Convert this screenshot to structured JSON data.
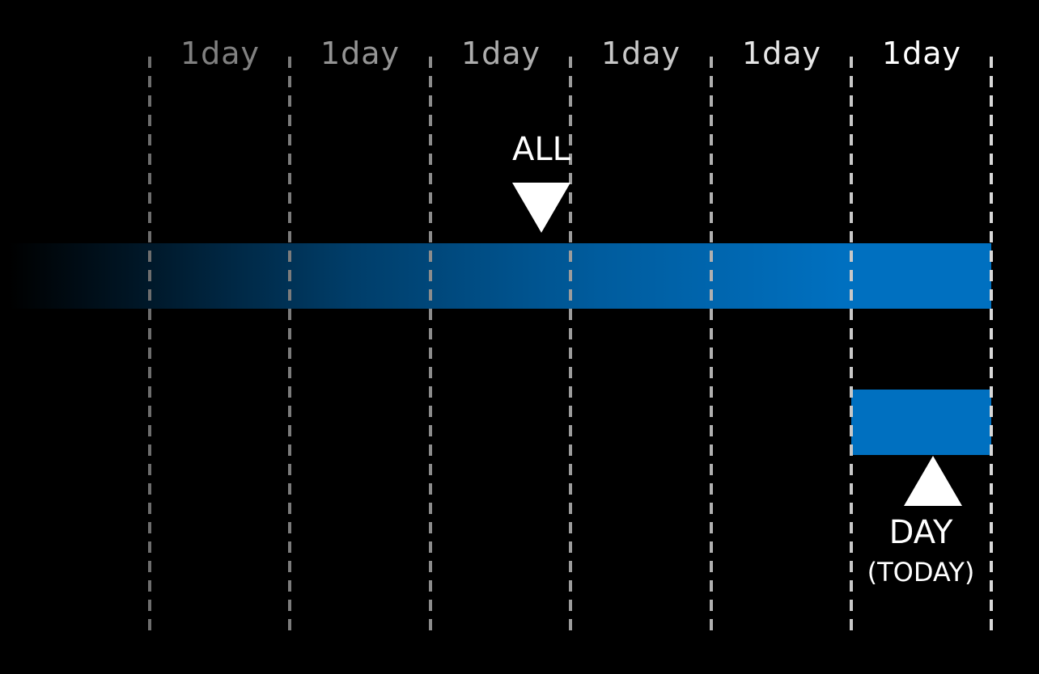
{
  "diagram": {
    "day_labels": [
      {
        "text": "1day",
        "opacity": 0.5
      },
      {
        "text": "1day",
        "opacity": 0.58
      },
      {
        "text": "1day",
        "opacity": 0.68
      },
      {
        "text": "1day",
        "opacity": 0.78
      },
      {
        "text": "1day",
        "opacity": 0.9
      },
      {
        "text": "1day",
        "opacity": 1.0
      }
    ],
    "all_marker": {
      "label": "ALL"
    },
    "day_marker": {
      "label": "DAY",
      "sublabel": "(TODAY)"
    },
    "colors": {
      "background": "#000000",
      "bar": "#0070c0",
      "divider_dim": "#6e6e6e",
      "divider_bright": "#d8d8d8",
      "text": "#ffffff"
    }
  }
}
